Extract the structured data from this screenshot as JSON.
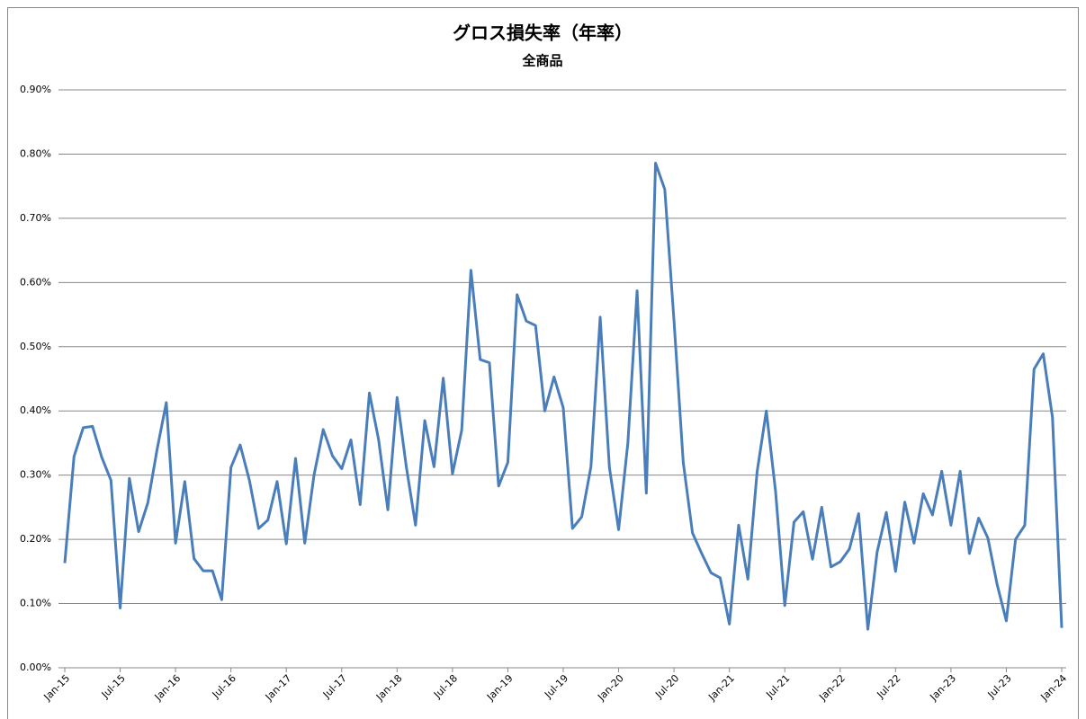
{
  "chart_data": {
    "type": "line",
    "title": "グロス損失率（年率）",
    "subtitle": "全商品",
    "categories": [
      "Jan-15",
      null,
      null,
      null,
      null,
      null,
      "Jul-15",
      null,
      null,
      null,
      null,
      null,
      "Jan-16",
      null,
      null,
      null,
      null,
      null,
      "Jul-16",
      null,
      null,
      null,
      null,
      null,
      "Jan-17",
      null,
      null,
      null,
      null,
      null,
      "Jul-17",
      null,
      null,
      null,
      null,
      null,
      "Jan-18",
      null,
      null,
      null,
      null,
      null,
      "Jul-18",
      null,
      null,
      null,
      null,
      null,
      "Jan-19",
      null,
      null,
      null,
      null,
      null,
      "Jul-19",
      null,
      null,
      null,
      null,
      null,
      "Jan-20",
      null,
      null,
      null,
      null,
      null,
      "Jul-20",
      null,
      null,
      null,
      null,
      null,
      "Jan-21",
      null,
      null,
      null,
      null,
      null,
      "Jul-21",
      null,
      null,
      null,
      null,
      null,
      "Jan-22",
      null,
      null,
      null,
      null,
      null,
      "Jul-22",
      null,
      null,
      null,
      null,
      null,
      "Jan-23",
      null,
      null,
      null,
      null,
      null,
      "Jul-23",
      null,
      null,
      null,
      null,
      null,
      "Jan-24"
    ],
    "series": [
      {
        "color": "#4a7ebb",
        "values": [
          0.163,
          0.329,
          0.374,
          0.376,
          0.328,
          0.292,
          0.093,
          0.295,
          0.212,
          0.257,
          0.34,
          0.413,
          0.194,
          0.29,
          0.17,
          0.151,
          0.151,
          0.106,
          0.312,
          0.347,
          0.292,
          0.217,
          0.23,
          0.29,
          0.193,
          0.326,
          0.194,
          0.3,
          0.371,
          0.33,
          0.31,
          0.355,
          0.254,
          0.428,
          0.355,
          0.246,
          0.421,
          0.313,
          0.222,
          0.385,
          0.313,
          0.451,
          0.302,
          0.37,
          0.619,
          0.48,
          0.475,
          0.283,
          0.32,
          0.581,
          0.54,
          0.533,
          0.4,
          0.453,
          0.405,
          0.217,
          0.235,
          0.313,
          0.546,
          0.312,
          0.215,
          0.35,
          0.587,
          0.272,
          0.786,
          0.745,
          0.54,
          0.32,
          0.21,
          0.178,
          0.148,
          0.14,
          0.068,
          0.222,
          0.138,
          0.305,
          0.4,
          0.275,
          0.097,
          0.227,
          0.243,
          0.169,
          0.25,
          0.157,
          0.165,
          0.185,
          0.24,
          0.06,
          0.18,
          0.242,
          0.15,
          0.258,
          0.194,
          0.271,
          0.238,
          0.306,
          0.222,
          0.306,
          0.178,
          0.233,
          0.202,
          0.13,
          0.073,
          0.2,
          0.222,
          0.465,
          0.489,
          0.39,
          0.062
        ]
      }
    ],
    "ylim": [
      0,
      0.9
    ],
    "yticks": [
      {
        "value": 0,
        "label": "0.00%"
      },
      {
        "value": 0.1,
        "label": "0.10%"
      },
      {
        "value": 0.2,
        "label": "0.20%"
      },
      {
        "value": 0.3,
        "label": "0.30%"
      },
      {
        "value": 0.4,
        "label": "0.40%"
      },
      {
        "value": 0.5,
        "label": "0.50%"
      },
      {
        "value": 0.6,
        "label": "0.60%"
      },
      {
        "value": 0.7,
        "label": "0.70%"
      },
      {
        "value": 0.8,
        "label": "0.80%"
      },
      {
        "value": 0.9,
        "label": "0.90%"
      }
    ],
    "grid": true
  }
}
